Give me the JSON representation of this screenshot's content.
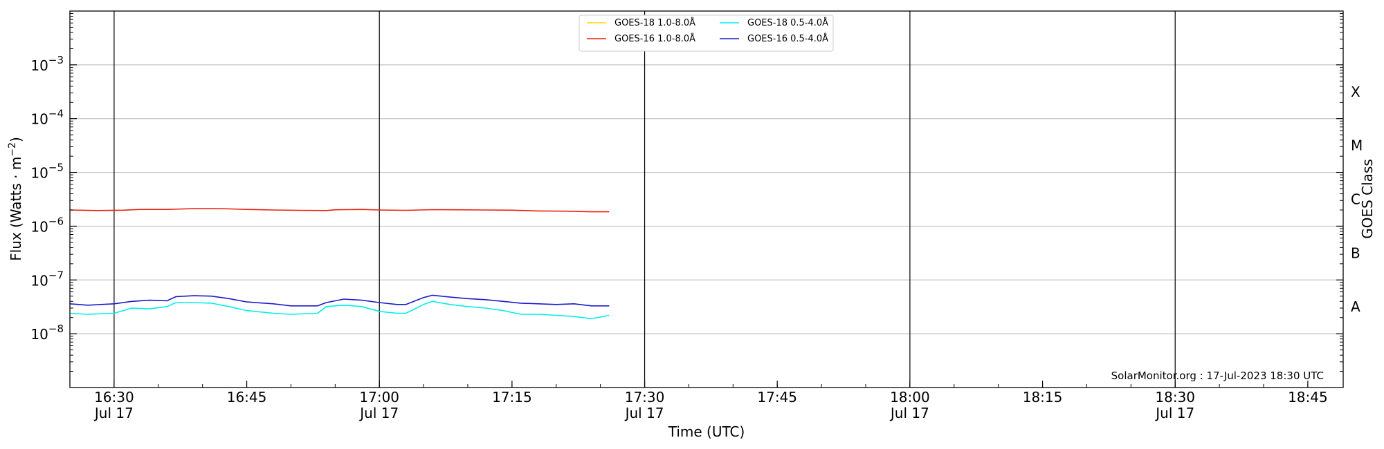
{
  "chart_data": {
    "type": "line",
    "title": "",
    "xlabel": "Time (UTC)",
    "ylabel": "Flux (Watts · m⁻²)",
    "ylabel_right": "GOES Class",
    "y_scale": "log",
    "ylim": [
      1e-09,
      0.01
    ],
    "xlim": [
      "2023-07-17 16:25",
      "2023-07-17 18:49"
    ],
    "y_ticks": [
      {
        "value": 1e-08,
        "base": "10",
        "exp": "−8"
      },
      {
        "value": 1e-07,
        "base": "10",
        "exp": "−7"
      },
      {
        "value": 1e-06,
        "base": "10",
        "exp": "−6"
      },
      {
        "value": 1e-05,
        "base": "10",
        "exp": "−5"
      },
      {
        "value": 0.0001,
        "base": "10",
        "exp": "−4"
      },
      {
        "value": 0.001,
        "base": "10",
        "exp": "−3"
      }
    ],
    "x_ticks": [
      {
        "time": "2023-07-17 16:30",
        "label": "16:30",
        "sublabel": "Jul 17"
      },
      {
        "time": "2023-07-17 16:45",
        "label": "16:45",
        "sublabel": ""
      },
      {
        "time": "2023-07-17 17:00",
        "label": "17:00",
        "sublabel": "Jul 17"
      },
      {
        "time": "2023-07-17 17:15",
        "label": "17:15",
        "sublabel": ""
      },
      {
        "time": "2023-07-17 17:30",
        "label": "17:30",
        "sublabel": "Jul 17"
      },
      {
        "time": "2023-07-17 17:45",
        "label": "17:45",
        "sublabel": ""
      },
      {
        "time": "2023-07-17 18:00",
        "label": "18:00",
        "sublabel": "Jul 17"
      },
      {
        "time": "2023-07-17 18:15",
        "label": "18:15",
        "sublabel": ""
      },
      {
        "time": "2023-07-17 18:30",
        "label": "18:30",
        "sublabel": "Jul 17"
      },
      {
        "time": "2023-07-17 18:45",
        "label": "18:45",
        "sublabel": ""
      }
    ],
    "vertical_lines": [
      "2023-07-17 16:30",
      "2023-07-17 17:00",
      "2023-07-17 17:30",
      "2023-07-17 18:00",
      "2023-07-17 18:30"
    ],
    "goes_classes": [
      {
        "label": "A",
        "value": 3.16e-08
      },
      {
        "label": "B",
        "value": 3.16e-07
      },
      {
        "label": "C",
        "value": 3.16e-06
      },
      {
        "label": "M",
        "value": 3.16e-05
      },
      {
        "label": "X",
        "value": 0.000316
      }
    ],
    "grid": true,
    "legend_position": "top-center",
    "annotation": "SolarMonitor.org : 17-Jul-2023 18:30 UTC",
    "series": [
      {
        "name": "GOES-18 1.0-8.0Å",
        "color": "#ffd700",
        "points": []
      },
      {
        "name": "GOES-16 1.0-8.0Å",
        "color": "#e8200c",
        "points": [
          [
            "2023-07-17 16:25",
            2e-06
          ],
          [
            "2023-07-17 16:28",
            1.95e-06
          ],
          [
            "2023-07-17 16:31",
            1.98e-06
          ],
          [
            "2023-07-17 16:33",
            2.05e-06
          ],
          [
            "2023-07-17 16:36",
            2.05e-06
          ],
          [
            "2023-07-17 16:39",
            2.12e-06
          ],
          [
            "2023-07-17 16:42",
            2.12e-06
          ],
          [
            "2023-07-17 16:45",
            2.05e-06
          ],
          [
            "2023-07-17 16:48",
            2e-06
          ],
          [
            "2023-07-17 16:51",
            1.97e-06
          ],
          [
            "2023-07-17 16:54",
            1.95e-06
          ],
          [
            "2023-07-17 16:55",
            2.02e-06
          ],
          [
            "2023-07-17 16:58",
            2.05e-06
          ],
          [
            "2023-07-17 17:00",
            2e-06
          ],
          [
            "2023-07-17 17:03",
            1.97e-06
          ],
          [
            "2023-07-17 17:06",
            2.03e-06
          ],
          [
            "2023-07-17 17:09",
            2.02e-06
          ],
          [
            "2023-07-17 17:12",
            2e-06
          ],
          [
            "2023-07-17 17:15",
            1.98e-06
          ],
          [
            "2023-07-17 17:18",
            1.92e-06
          ],
          [
            "2023-07-17 17:21",
            1.9e-06
          ],
          [
            "2023-07-17 17:24",
            1.85e-06
          ],
          [
            "2023-07-17 17:26",
            1.85e-06
          ]
        ]
      },
      {
        "name": "GOES-18 0.5-4.0Å",
        "color": "#00eeee",
        "points": [
          [
            "2023-07-17 16:25",
            2.4e-08
          ],
          [
            "2023-07-17 16:27",
            2.3e-08
          ],
          [
            "2023-07-17 16:30",
            2.4e-08
          ],
          [
            "2023-07-17 16:32",
            3e-08
          ],
          [
            "2023-07-17 16:34",
            2.9e-08
          ],
          [
            "2023-07-17 16:36",
            3.2e-08
          ],
          [
            "2023-07-17 16:37",
            3.8e-08
          ],
          [
            "2023-07-17 16:39",
            3.8e-08
          ],
          [
            "2023-07-17 16:41",
            3.7e-08
          ],
          [
            "2023-07-17 16:43",
            3.2e-08
          ],
          [
            "2023-07-17 16:45",
            2.7e-08
          ],
          [
            "2023-07-17 16:48",
            2.4e-08
          ],
          [
            "2023-07-17 16:50",
            2.3e-08
          ],
          [
            "2023-07-17 16:53",
            2.4e-08
          ],
          [
            "2023-07-17 16:54",
            3.2e-08
          ],
          [
            "2023-07-17 16:56",
            3.4e-08
          ],
          [
            "2023-07-17 16:58",
            3.2e-08
          ],
          [
            "2023-07-17 17:00",
            2.6e-08
          ],
          [
            "2023-07-17 17:02",
            2.4e-08
          ],
          [
            "2023-07-17 17:03",
            2.4e-08
          ],
          [
            "2023-07-17 17:05",
            3.5e-08
          ],
          [
            "2023-07-17 17:06",
            4e-08
          ],
          [
            "2023-07-17 17:08",
            3.5e-08
          ],
          [
            "2023-07-17 17:10",
            3.2e-08
          ],
          [
            "2023-07-17 17:12",
            3e-08
          ],
          [
            "2023-07-17 17:14",
            2.7e-08
          ],
          [
            "2023-07-17 17:16",
            2.3e-08
          ],
          [
            "2023-07-17 17:18",
            2.3e-08
          ],
          [
            "2023-07-17 17:20",
            2.2e-08
          ],
          [
            "2023-07-17 17:22",
            2.1e-08
          ],
          [
            "2023-07-17 17:24",
            1.9e-08
          ],
          [
            "2023-07-17 17:26",
            2.2e-08
          ]
        ]
      },
      {
        "name": "GOES-16 0.5-4.0Å",
        "color": "#1a1acc",
        "points": [
          [
            "2023-07-17 16:25",
            3.6e-08
          ],
          [
            "2023-07-17 16:27",
            3.4e-08
          ],
          [
            "2023-07-17 16:30",
            3.6e-08
          ],
          [
            "2023-07-17 16:32",
            4e-08
          ],
          [
            "2023-07-17 16:34",
            4.2e-08
          ],
          [
            "2023-07-17 16:36",
            4.1e-08
          ],
          [
            "2023-07-17 16:37",
            4.9e-08
          ],
          [
            "2023-07-17 16:39",
            5.1e-08
          ],
          [
            "2023-07-17 16:41",
            5e-08
          ],
          [
            "2023-07-17 16:43",
            4.5e-08
          ],
          [
            "2023-07-17 16:45",
            3.9e-08
          ],
          [
            "2023-07-17 16:48",
            3.6e-08
          ],
          [
            "2023-07-17 16:50",
            3.3e-08
          ],
          [
            "2023-07-17 16:53",
            3.3e-08
          ],
          [
            "2023-07-17 16:54",
            3.8e-08
          ],
          [
            "2023-07-17 16:56",
            4.4e-08
          ],
          [
            "2023-07-17 16:58",
            4.2e-08
          ],
          [
            "2023-07-17 17:00",
            3.8e-08
          ],
          [
            "2023-07-17 17:02",
            3.5e-08
          ],
          [
            "2023-07-17 17:03",
            3.5e-08
          ],
          [
            "2023-07-17 17:05",
            4.7e-08
          ],
          [
            "2023-07-17 17:06",
            5.2e-08
          ],
          [
            "2023-07-17 17:08",
            4.8e-08
          ],
          [
            "2023-07-17 17:10",
            4.5e-08
          ],
          [
            "2023-07-17 17:12",
            4.3e-08
          ],
          [
            "2023-07-17 17:14",
            4e-08
          ],
          [
            "2023-07-17 17:16",
            3.7e-08
          ],
          [
            "2023-07-17 17:18",
            3.6e-08
          ],
          [
            "2023-07-17 17:20",
            3.5e-08
          ],
          [
            "2023-07-17 17:22",
            3.6e-08
          ],
          [
            "2023-07-17 17:24",
            3.3e-08
          ],
          [
            "2023-07-17 17:26",
            3.3e-08
          ]
        ]
      }
    ]
  }
}
